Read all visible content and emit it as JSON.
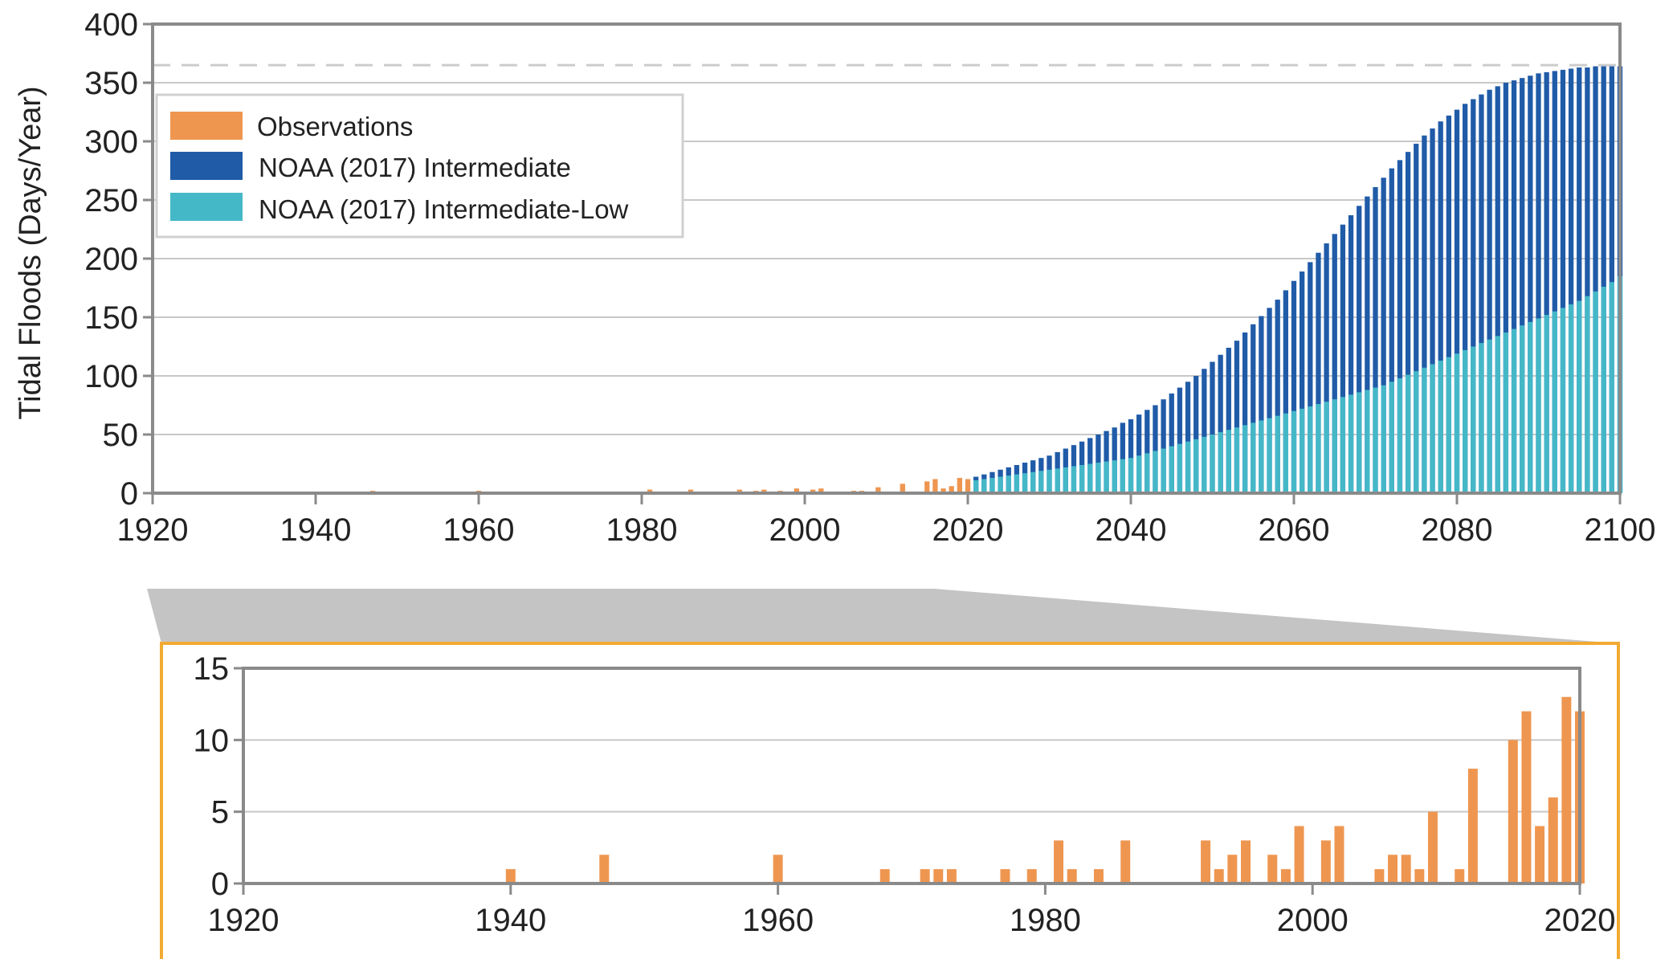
{
  "chart_data": [
    {
      "type": "bar",
      "ylabel": "Tidal Floods (Days/Year)",
      "xlim": [
        1920,
        2100
      ],
      "ylim": [
        0,
        400
      ],
      "x_ticks": [
        1920,
        1940,
        1960,
        1980,
        2000,
        2020,
        2040,
        2060,
        2080,
        2100
      ],
      "y_ticks": [
        0,
        50,
        100,
        150,
        200,
        250,
        300,
        350,
        400
      ],
      "reference_line": 365,
      "grid": true,
      "legend_placement": "upper-left",
      "legend": [
        {
          "name": "Observations",
          "color": "#EE9650"
        },
        {
          "name": "NOAA (2017) Intermediate",
          "color": "#205BA8"
        },
        {
          "name": "NOAA (2017) Intermediate-Low",
          "color": "#45B8C8"
        }
      ],
      "series": [
        {
          "name": "Observations",
          "color": "#EE9650",
          "points": [
            [
              1940,
              1
            ],
            [
              1947,
              2
            ],
            [
              1960,
              2
            ],
            [
              1968,
              1
            ],
            [
              1971,
              1
            ],
            [
              1972,
              1
            ],
            [
              1973,
              1
            ],
            [
              1977,
              1
            ],
            [
              1979,
              1
            ],
            [
              1981,
              3
            ],
            [
              1982,
              1
            ],
            [
              1984,
              1
            ],
            [
              1986,
              3
            ],
            [
              1992,
              3
            ],
            [
              1993,
              1
            ],
            [
              1994,
              2
            ],
            [
              1995,
              3
            ],
            [
              1997,
              2
            ],
            [
              1998,
              1
            ],
            [
              1999,
              4
            ],
            [
              2001,
              3
            ],
            [
              2002,
              4
            ],
            [
              2005,
              1
            ],
            [
              2006,
              2
            ],
            [
              2007,
              2
            ],
            [
              2008,
              1
            ],
            [
              2009,
              5
            ],
            [
              2011,
              1
            ],
            [
              2012,
              8
            ],
            [
              2015,
              10
            ],
            [
              2016,
              12
            ],
            [
              2017,
              4
            ],
            [
              2018,
              6
            ],
            [
              2019,
              13
            ],
            [
              2020,
              12
            ]
          ]
        },
        {
          "name": "NOAA (2017) Intermediate",
          "color": "#205BA8",
          "points": [
            [
              2021,
              14
            ],
            [
              2022,
              16
            ],
            [
              2023,
              18
            ],
            [
              2024,
              20
            ],
            [
              2025,
              22
            ],
            [
              2026,
              24
            ],
            [
              2027,
              26
            ],
            [
              2028,
              28
            ],
            [
              2029,
              30
            ],
            [
              2030,
              32
            ],
            [
              2031,
              35
            ],
            [
              2032,
              38
            ],
            [
              2033,
              41
            ],
            [
              2034,
              44
            ],
            [
              2035,
              47
            ],
            [
              2036,
              50
            ],
            [
              2037,
              53
            ],
            [
              2038,
              56
            ],
            [
              2039,
              60
            ],
            [
              2040,
              63
            ],
            [
              2041,
              67
            ],
            [
              2042,
              71
            ],
            [
              2043,
              75
            ],
            [
              2044,
              80
            ],
            [
              2045,
              85
            ],
            [
              2046,
              90
            ],
            [
              2047,
              95
            ],
            [
              2048,
              100
            ],
            [
              2049,
              106
            ],
            [
              2050,
              112
            ],
            [
              2051,
              118
            ],
            [
              2052,
              124
            ],
            [
              2053,
              130
            ],
            [
              2054,
              137
            ],
            [
              2055,
              144
            ],
            [
              2056,
              151
            ],
            [
              2057,
              158
            ],
            [
              2058,
              165
            ],
            [
              2059,
              173
            ],
            [
              2060,
              181
            ],
            [
              2061,
              189
            ],
            [
              2062,
              197
            ],
            [
              2063,
              205
            ],
            [
              2064,
              213
            ],
            [
              2065,
              221
            ],
            [
              2066,
              229
            ],
            [
              2067,
              237
            ],
            [
              2068,
              245
            ],
            [
              2069,
              253
            ],
            [
              2070,
              261
            ],
            [
              2071,
              269
            ],
            [
              2072,
              277
            ],
            [
              2073,
              284
            ],
            [
              2074,
              291
            ],
            [
              2075,
              298
            ],
            [
              2076,
              305
            ],
            [
              2077,
              311
            ],
            [
              2078,
              317
            ],
            [
              2079,
              322
            ],
            [
              2080,
              327
            ],
            [
              2081,
              332
            ],
            [
              2082,
              336
            ],
            [
              2083,
              340
            ],
            [
              2084,
              344
            ],
            [
              2085,
              347
            ],
            [
              2086,
              350
            ],
            [
              2087,
              352
            ],
            [
              2088,
              354
            ],
            [
              2089,
              356
            ],
            [
              2090,
              358
            ],
            [
              2091,
              359
            ],
            [
              2092,
              360
            ],
            [
              2093,
              361
            ],
            [
              2094,
              362
            ],
            [
              2095,
              363
            ],
            [
              2096,
              363
            ],
            [
              2097,
              364
            ],
            [
              2098,
              364
            ],
            [
              2099,
              364
            ],
            [
              2100,
              364
            ]
          ]
        },
        {
          "name": "NOAA (2017) Intermediate-Low",
          "color": "#45B8C8",
          "points": [
            [
              2021,
              11
            ],
            [
              2022,
              12
            ],
            [
              2023,
              13
            ],
            [
              2024,
              14
            ],
            [
              2025,
              15
            ],
            [
              2026,
              16
            ],
            [
              2027,
              17
            ],
            [
              2028,
              18
            ],
            [
              2029,
              19
            ],
            [
              2030,
              20
            ],
            [
              2031,
              21
            ],
            [
              2032,
              22
            ],
            [
              2033,
              23
            ],
            [
              2034,
              24
            ],
            [
              2035,
              25
            ],
            [
              2036,
              26
            ],
            [
              2037,
              27
            ],
            [
              2038,
              28
            ],
            [
              2039,
              29
            ],
            [
              2040,
              30
            ],
            [
              2041,
              32
            ],
            [
              2042,
              34
            ],
            [
              2043,
              36
            ],
            [
              2044,
              38
            ],
            [
              2045,
              40
            ],
            [
              2046,
              42
            ],
            [
              2047,
              44
            ],
            [
              2048,
              46
            ],
            [
              2049,
              48
            ],
            [
              2050,
              50
            ],
            [
              2051,
              52
            ],
            [
              2052,
              54
            ],
            [
              2053,
              56
            ],
            [
              2054,
              58
            ],
            [
              2055,
              60
            ],
            [
              2056,
              62
            ],
            [
              2057,
              64
            ],
            [
              2058,
              66
            ],
            [
              2059,
              68
            ],
            [
              2060,
              70
            ],
            [
              2061,
              72
            ],
            [
              2062,
              74
            ],
            [
              2063,
              76
            ],
            [
              2064,
              78
            ],
            [
              2065,
              80
            ],
            [
              2066,
              82
            ],
            [
              2067,
              84
            ],
            [
              2068,
              86
            ],
            [
              2069,
              88
            ],
            [
              2070,
              90
            ],
            [
              2071,
              92
            ],
            [
              2072,
              95
            ],
            [
              2073,
              98
            ],
            [
              2074,
              101
            ],
            [
              2075,
              104
            ],
            [
              2076,
              107
            ],
            [
              2077,
              110
            ],
            [
              2078,
              113
            ],
            [
              2079,
              116
            ],
            [
              2080,
              119
            ],
            [
              2081,
              122
            ],
            [
              2082,
              125
            ],
            [
              2083,
              128
            ],
            [
              2084,
              131
            ],
            [
              2085,
              134
            ],
            [
              2086,
              137
            ],
            [
              2087,
              140
            ],
            [
              2088,
              143
            ],
            [
              2089,
              146
            ],
            [
              2090,
              149
            ],
            [
              2091,
              152
            ],
            [
              2092,
              155
            ],
            [
              2093,
              158
            ],
            [
              2094,
              161
            ],
            [
              2095,
              164
            ],
            [
              2096,
              168
            ],
            [
              2097,
              172
            ],
            [
              2098,
              176
            ],
            [
              2099,
              180
            ],
            [
              2100,
              185
            ]
          ]
        }
      ]
    },
    {
      "type": "bar",
      "xlim": [
        1920,
        2020
      ],
      "ylim": [
        0,
        15
      ],
      "x_ticks": [
        1920,
        1940,
        1960,
        1980,
        2000,
        2020
      ],
      "y_ticks": [
        0,
        5,
        10,
        15
      ],
      "grid": true,
      "zoom_of": "Observations",
      "series": [
        {
          "name": "Observations",
          "color": "#EE9650",
          "points": [
            [
              1940,
              1
            ],
            [
              1947,
              2
            ],
            [
              1960,
              2
            ],
            [
              1968,
              1
            ],
            [
              1971,
              1
            ],
            [
              1972,
              1
            ],
            [
              1973,
              1
            ],
            [
              1977,
              1
            ],
            [
              1979,
              1
            ],
            [
              1981,
              3
            ],
            [
              1982,
              1
            ],
            [
              1984,
              1
            ],
            [
              1986,
              3
            ],
            [
              1992,
              3
            ],
            [
              1993,
              1
            ],
            [
              1994,
              2
            ],
            [
              1995,
              3
            ],
            [
              1997,
              2
            ],
            [
              1998,
              1
            ],
            [
              1999,
              4
            ],
            [
              2001,
              3
            ],
            [
              2002,
              4
            ],
            [
              2005,
              1
            ],
            [
              2006,
              2
            ],
            [
              2007,
              2
            ],
            [
              2008,
              1
            ],
            [
              2009,
              5
            ],
            [
              2011,
              1
            ],
            [
              2012,
              8
            ],
            [
              2015,
              10
            ],
            [
              2016,
              12
            ],
            [
              2017,
              4
            ],
            [
              2018,
              6
            ],
            [
              2019,
              13
            ],
            [
              2020,
              12
            ]
          ]
        }
      ]
    }
  ]
}
